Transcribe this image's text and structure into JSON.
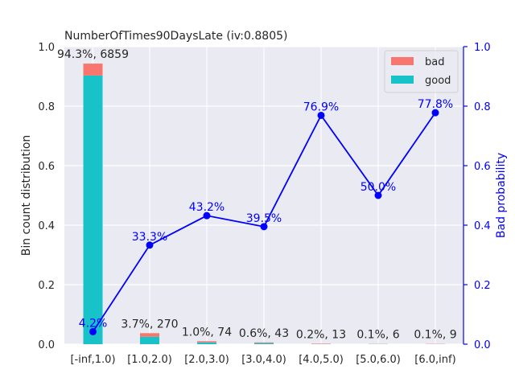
{
  "chart_data": {
    "type": "bar",
    "title": "NumberOfTimes90DaysLate  (iv:0.8805)",
    "ylabel": "Bin count distribution",
    "y2label": "Bad probability",
    "categories": [
      "[-inf,1.0)",
      "[1.0,2.0)",
      "[2.0,3.0)",
      "[3.0,4.0)",
      "[4.0,5.0)",
      "[5.0,6.0)",
      "[6.0,inf)"
    ],
    "ylim": [
      0,
      1.0
    ],
    "y2lim": [
      0,
      1.0
    ],
    "yticks": [
      "0.0",
      "0.2",
      "0.4",
      "0.6",
      "0.8",
      "1.0"
    ],
    "y2ticks": [
      "0.0",
      "0.2",
      "0.4",
      "0.6",
      "0.8",
      "1.0"
    ],
    "series": [
      {
        "name": "bad",
        "color": "#f8766d",
        "values": [
          0.04,
          0.012,
          0.004,
          0.0024,
          0.0015,
          0.0005,
          0.0008
        ]
      },
      {
        "name": "good",
        "color": "#17c3c9",
        "values": [
          0.903,
          0.025,
          0.006,
          0.0036,
          0.0005,
          0.0005,
          0.0002
        ]
      }
    ],
    "bar_labels": [
      "94.3%, 6859",
      "3.7%, 270",
      "1.0%, 74",
      "0.6%, 43",
      "0.2%, 13",
      "0.1%, 6",
      "0.1%, 9"
    ],
    "bad_probability": {
      "name": "Bad probability",
      "color": "#0000ff",
      "values": [
        0.042,
        0.333,
        0.432,
        0.395,
        0.769,
        0.5,
        0.778
      ],
      "labels": [
        "4.2%",
        "33.3%",
        "43.2%",
        "39.5%",
        "76.9%",
        "50.0%",
        "77.8%"
      ]
    },
    "legend": {
      "position": "top-right",
      "entries": [
        "bad",
        "good"
      ]
    },
    "grid": true
  }
}
